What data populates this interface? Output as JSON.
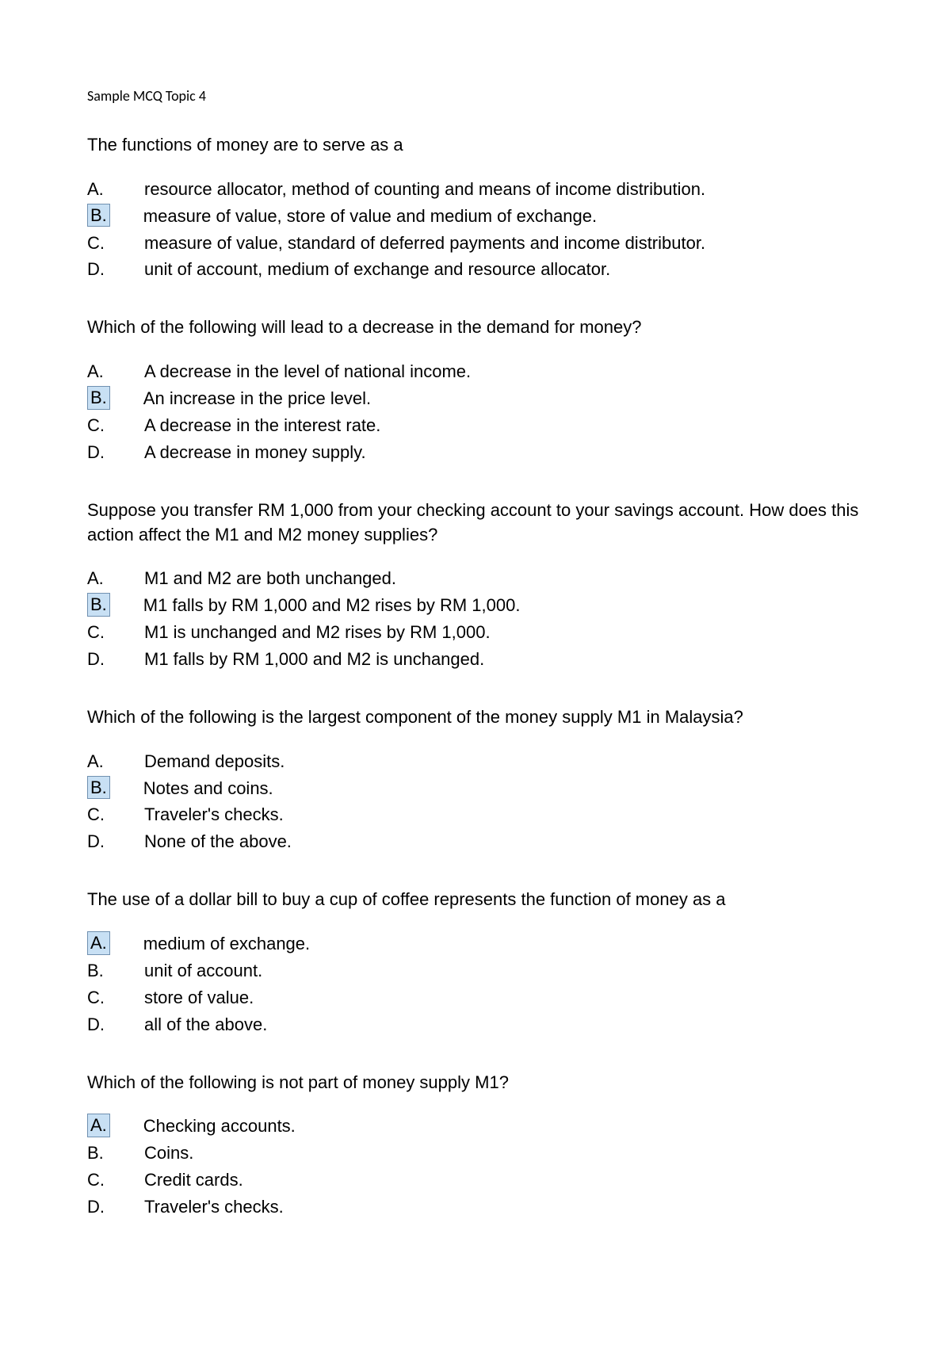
{
  "header": "Sample MCQ Topic 4",
  "questions": [
    {
      "text": "The functions of money are to serve as a",
      "options": [
        {
          "letter": "A.",
          "text": "resource allocator, method of counting and means of income distribution.",
          "highlighted": false
        },
        {
          "letter": "B.",
          "text": "measure of value, store of value and medium of exchange.",
          "highlighted": true
        },
        {
          "letter": "C.",
          "text": "measure of value, standard of deferred payments and income distributor.",
          "highlighted": false
        },
        {
          "letter": "D.",
          "text": "unit of account, medium of exchange and resource allocator.",
          "highlighted": false
        }
      ]
    },
    {
      "text": "Which of the following will lead to a decrease in the demand for money?",
      "options": [
        {
          "letter": "A.",
          "text": "A decrease in the level of national income.",
          "highlighted": false
        },
        {
          "letter": "B.",
          "text": "An increase in the price level.",
          "highlighted": true
        },
        {
          "letter": "C.",
          "text": "A decrease in the interest rate.",
          "highlighted": false
        },
        {
          "letter": "D.",
          "text": "A decrease in money supply.",
          "highlighted": false
        }
      ]
    },
    {
      "text": "Suppose you transfer RM 1,000 from your checking account to your savings account. How does this action affect the M1 and M2 money supplies?",
      "options": [
        {
          "letter": "A.",
          "text": "M1 and M2 are both unchanged.",
          "highlighted": false
        },
        {
          "letter": "B.",
          "text": "M1 falls by RM 1,000 and M2 rises by RM 1,000.",
          "highlighted": true
        },
        {
          "letter": "C.",
          "text": "M1 is unchanged and M2 rises by RM 1,000.",
          "highlighted": false
        },
        {
          "letter": "D.",
          "text": "M1 falls by RM 1,000 and M2 is unchanged.",
          "highlighted": false
        }
      ]
    },
    {
      "text": "Which of the following is the largest component of the money supply M1 in Malaysia?",
      "options": [
        {
          "letter": "A.",
          "text": "Demand deposits.",
          "highlighted": false
        },
        {
          "letter": "B.",
          "text": "Notes and coins.",
          "highlighted": true
        },
        {
          "letter": "C.",
          "text": "Traveler's checks.",
          "highlighted": false
        },
        {
          "letter": "D.",
          "text": "None of the above.",
          "highlighted": false
        }
      ]
    },
    {
      "text": "The use of a dollar bill to buy a cup of coffee represents the function of money as a",
      "options": [
        {
          "letter": "A.",
          "text": "medium of exchange.",
          "highlighted": true
        },
        {
          "letter": "B.",
          "text": "unit of account.",
          "highlighted": false
        },
        {
          "letter": "C.",
          "text": "store of value.",
          "highlighted": false
        },
        {
          "letter": "D.",
          "text": "all of the above.",
          "highlighted": false
        }
      ]
    },
    {
      "text": "Which of the following is not part of money supply M1?",
      "options": [
        {
          "letter": "A.",
          "text": "Checking accounts.",
          "highlighted": true
        },
        {
          "letter": "B.",
          "text": "Coins.",
          "highlighted": false
        },
        {
          "letter": "C.",
          "text": "Credit cards.",
          "highlighted": false
        },
        {
          "letter": "D.",
          "text": "Traveler's checks.",
          "highlighted": false
        }
      ]
    }
  ]
}
